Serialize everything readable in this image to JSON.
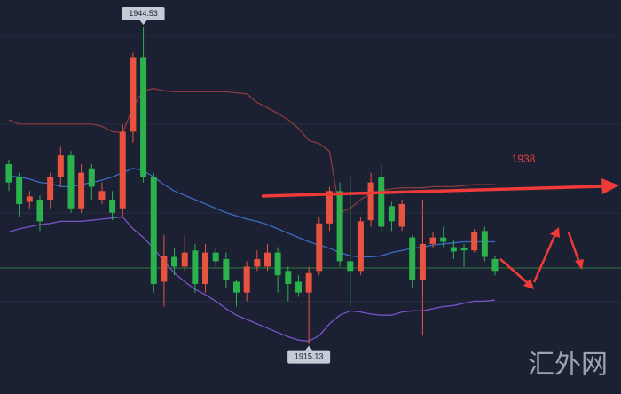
{
  "chart_data": {
    "type": "candlestick",
    "ylim": [
      1910.5,
      1947.0
    ],
    "up_color": "#e8533f",
    "down_color": "#2bb24c",
    "open": [
      1931.8,
      1930.6,
      1928.3,
      1928.5,
      1928.5,
      1930.6,
      1932.6,
      1927.7,
      1931.4,
      1928.5,
      1928.5,
      1927.7,
      1934.8,
      1941.7,
      1930.6,
      1920.9,
      1923.2,
      1922.3,
      1923.8,
      1920.7,
      1923.6,
      1923.0,
      1920.9,
      1919.9,
      1922.3,
      1922.3,
      1923.6,
      1921.9,
      1920.9,
      1919.9,
      1921.9,
      1926.3,
      1929.3,
      1922.8,
      1921.9,
      1926.6,
      1930.6,
      1927.9,
      1926.0,
      1925.0,
      1921.1,
      1924.4,
      1925.0,
      1924.1,
      1924.0,
      1923.8,
      1925.6,
      1923.0
    ],
    "high": [
      1932.2,
      1931.0,
      1929.3,
      1928.9,
      1931.0,
      1933.4,
      1933.0,
      1931.8,
      1931.8,
      1930.1,
      1929.3,
      1935.5,
      1942.1,
      1944.53,
      1931.0,
      1925.2,
      1924.0,
      1925.2,
      1924.4,
      1924.4,
      1924.0,
      1923.6,
      1921.1,
      1922.8,
      1923.8,
      1924.4,
      1924.1,
      1922.3,
      1921.5,
      1922.3,
      1926.9,
      1929.7,
      1930.1,
      1930.6,
      1926.9,
      1931.0,
      1931.8,
      1928.3,
      1928.5,
      1925.2,
      1928.5,
      1925.5,
      1926.0,
      1924.8,
      1924.4,
      1925.8,
      1926.0,
      1923.3
    ],
    "low": [
      1929.3,
      1926.9,
      1927.7,
      1925.6,
      1927.7,
      1929.7,
      1927.3,
      1927.3,
      1928.5,
      1928.1,
      1926.6,
      1926.9,
      1933.8,
      1930.1,
      1919.9,
      1918.6,
      1921.5,
      1921.9,
      1919.9,
      1919.9,
      1922.3,
      1920.3,
      1918.6,
      1919.1,
      1921.9,
      1921.9,
      1919.9,
      1919.1,
      1919.5,
      1915.13,
      1921.5,
      1925.6,
      1922.3,
      1918.6,
      1921.5,
      1926.0,
      1925.5,
      1925.6,
      1925.6,
      1920.3,
      1915.9,
      1924.0,
      1924.1,
      1923.0,
      1922.3,
      1923.6,
      1922.8,
      1921.5
    ],
    "close": [
      1930.1,
      1928.1,
      1928.8,
      1926.5,
      1930.6,
      1932.6,
      1927.7,
      1931.0,
      1929.7,
      1929.3,
      1927.3,
      1934.8,
      1941.7,
      1930.6,
      1920.7,
      1923.3,
      1922.3,
      1923.6,
      1920.7,
      1923.6,
      1922.8,
      1921.1,
      1919.9,
      1922.3,
      1923.0,
      1923.6,
      1921.5,
      1920.7,
      1919.9,
      1921.7,
      1926.3,
      1929.3,
      1922.8,
      1921.9,
      1926.5,
      1930.1,
      1926.0,
      1926.5,
      1928.1,
      1921.1,
      1924.4,
      1925.0,
      1924.6,
      1923.7,
      1923.8,
      1925.5,
      1923.2,
      1921.9
    ],
    "overlays": [
      {
        "color": "#8a3b3b",
        "values": [
          1935.9,
          1935.5,
          1935.5,
          1935.5,
          1935.5,
          1935.5,
          1935.5,
          1935.5,
          1935.5,
          1935.3,
          1934.8,
          1934.7,
          1937.1,
          1938.6,
          1938.8,
          1938.6,
          1938.5,
          1938.5,
          1938.5,
          1938.5,
          1938.5,
          1938.5,
          1938.4,
          1938.3,
          1937.5,
          1937.0,
          1936.5,
          1935.9,
          1935.1,
          1934.0,
          1933.7,
          1933.0,
          1927.3,
          1927.7,
          1928.5,
          1929.1,
          1929.3,
          1929.5,
          1929.6,
          1929.6,
          1929.6,
          1929.7,
          1929.7,
          1929.7,
          1929.8,
          1929.9,
          1929.9,
          1929.9
        ]
      },
      {
        "color": "#3d6bc4",
        "values": [
          1930.7,
          1930.6,
          1930.4,
          1930.1,
          1930.0,
          1929.7,
          1929.7,
          1929.9,
          1930.1,
          1930.3,
          1930.6,
          1931.0,
          1931.4,
          1931.2,
          1930.6,
          1929.9,
          1929.3,
          1928.9,
          1928.5,
          1928.1,
          1927.7,
          1927.3,
          1927.0,
          1926.7,
          1926.5,
          1926.2,
          1925.8,
          1925.4,
          1925.0,
          1924.6,
          1924.3,
          1924.0,
          1923.6,
          1923.3,
          1923.2,
          1923.2,
          1923.3,
          1923.6,
          1923.8,
          1924.0,
          1924.1,
          1924.3,
          1924.4,
          1924.5,
          1924.6,
          1924.6,
          1924.6,
          1924.6
        ]
      },
      {
        "color": "#7b52c9",
        "values": [
          1925.5,
          1925.8,
          1926.0,
          1926.2,
          1926.3,
          1926.5,
          1926.5,
          1926.5,
          1926.6,
          1926.7,
          1926.8,
          1926.9,
          1925.8,
          1925.0,
          1924.0,
          1922.8,
          1921.7,
          1920.9,
          1920.2,
          1919.7,
          1919.1,
          1918.4,
          1917.8,
          1917.4,
          1917.0,
          1916.6,
          1916.2,
          1915.8,
          1915.5,
          1915.4,
          1915.9,
          1917.0,
          1917.8,
          1918.2,
          1918.1,
          1917.9,
          1917.8,
          1917.8,
          1918.1,
          1918.2,
          1918.2,
          1918.4,
          1918.6,
          1918.7,
          1918.9,
          1919.1,
          1919.1,
          1919.2
        ]
      }
    ],
    "annotation": "1938",
    "watermark": "汇外网"
  }
}
